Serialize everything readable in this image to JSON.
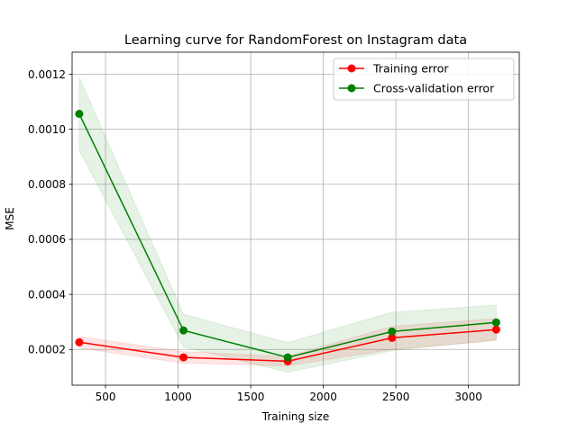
{
  "chart_data": {
    "type": "line",
    "title": "Learning curve for RandomForest on Instagram data",
    "xlabel": "Training size",
    "ylabel": "MSE",
    "xlim": [
      270,
      3350
    ],
    "ylim": [
      7e-05,
      0.00128
    ],
    "x_ticks": [
      500,
      1000,
      1500,
      2000,
      2500,
      3000
    ],
    "x_tick_labels": [
      "500",
      "1000",
      "1500",
      "2000",
      "2500",
      "3000"
    ],
    "y_ticks": [
      0.0002,
      0.0004,
      0.0006,
      0.0008,
      0.001,
      0.0012
    ],
    "y_tick_labels": [
      "0.0002",
      "0.0004",
      "0.0006",
      "0.0008",
      "0.0010",
      "0.0012"
    ],
    "grid": true,
    "legend_position": "top-right",
    "x": [
      319,
      1037,
      1755,
      2473,
      3191
    ],
    "series": [
      {
        "name": "Training error",
        "color": "#ff0000",
        "band_color": "#ff0000",
        "values": [
          0.000226,
          0.000171,
          0.000157,
          0.000242,
          0.000272
        ],
        "lower": [
          0.000205,
          0.00015,
          0.00014,
          0.0002,
          0.000232
        ],
        "upper": [
          0.000247,
          0.000192,
          0.000174,
          0.000284,
          0.000312
        ]
      },
      {
        "name": "Cross-validation error",
        "color": "#008000",
        "band_color": "#008000",
        "values": [
          0.001056,
          0.000269,
          0.000171,
          0.000265,
          0.000298
        ],
        "lower": [
          0.000923,
          0.00021,
          0.000117,
          0.000195,
          0.000235
        ],
        "upper": [
          0.001189,
          0.000328,
          0.000225,
          0.000335,
          0.000361
        ]
      }
    ]
  }
}
